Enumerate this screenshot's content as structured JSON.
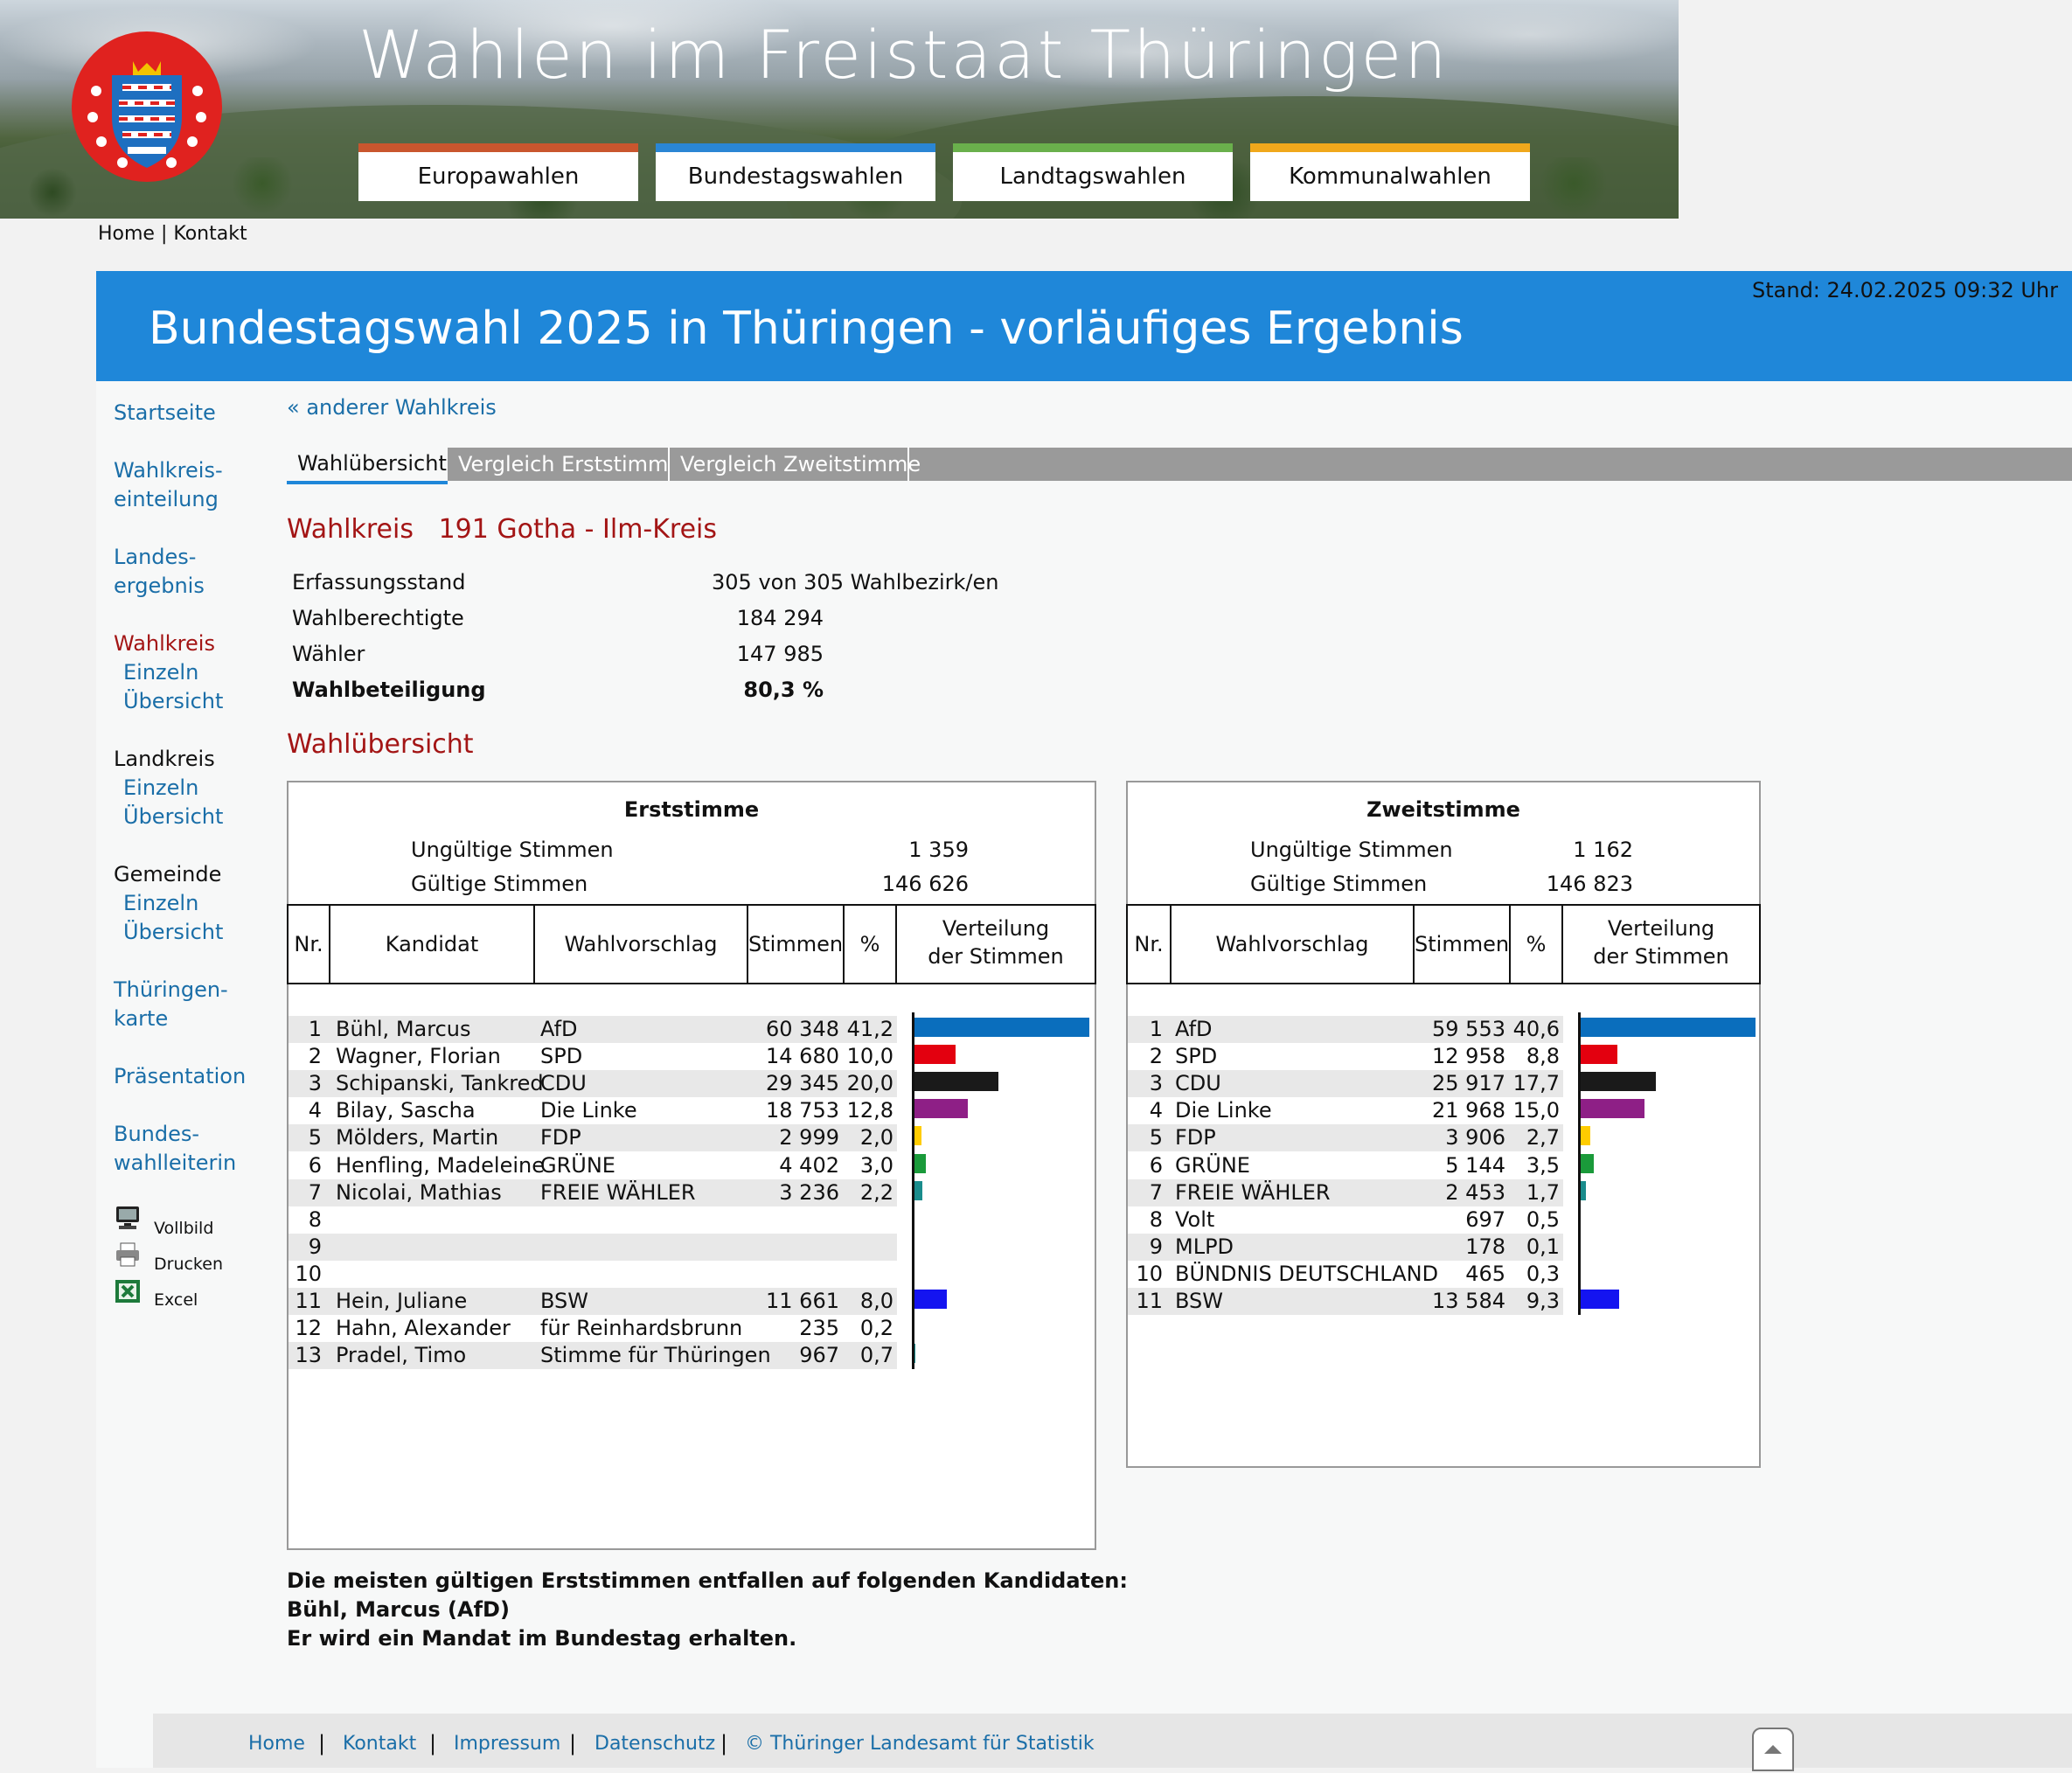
{
  "site": {
    "title": "Wahlen im Freistaat Thüringen",
    "nav_tabs": [
      {
        "label": "Europawahlen",
        "color": "#c9562e"
      },
      {
        "label": "Bundestagswahlen",
        "color": "#2a86d4"
      },
      {
        "label": "Landtagswahlen",
        "color": "#6ab04c"
      },
      {
        "label": "Kommunalwahlen",
        "color": "#f0a81c"
      }
    ],
    "top_links": {
      "home": "Home",
      "sep": "|",
      "contact": "Kontakt"
    }
  },
  "header": {
    "title": "Bundestagswahl 2025 in Thüringen - vorläufiges Ergebnis",
    "stand": "Stand: 24.02.2025  09:32 Uhr"
  },
  "sidebar": {
    "startseite": "Startseite",
    "wahlkreiseinteilung": [
      "Wahlkreis-",
      "einteilung"
    ],
    "landesergebnis": [
      "Landes-",
      "ergebnis"
    ],
    "wahlkreis": {
      "label": "Wahlkreis",
      "einzeln": "Einzeln",
      "uebersicht": "Übersicht"
    },
    "landkreis": {
      "label": "Landkreis",
      "einzeln": "Einzeln",
      "uebersicht": "Übersicht"
    },
    "gemeinde": {
      "label": "Gemeinde",
      "einzeln": "Einzeln",
      "uebersicht": "Übersicht"
    },
    "karte": [
      "Thüringen-",
      "karte"
    ],
    "praesentation": "Präsentation",
    "bundeswahlleiterin": [
      "Bundes-",
      "wahlleiterin"
    ],
    "tools": {
      "vollbild": "Vollbild",
      "drucken": "Drucken",
      "excel": "Excel"
    }
  },
  "main": {
    "back_link": "« anderer Wahlkreis",
    "tabs": [
      "Wahlübersicht",
      "Vergleich Erststimme",
      "Vergleich Zweitstimme"
    ],
    "wahlkreis_label": "Wahlkreis",
    "wahlkreis_name": "191 Gotha - Ilm-Kreis",
    "stats": {
      "erfassungsstand_label": "Erfassungsstand",
      "erfassungsstand_value": "305 von 305  Wahlbezirk/en",
      "berechtigte_label": "Wahlberechtigte",
      "berechtigte_value": "184 294",
      "waehler_label": "Wähler",
      "waehler_value": "147 985",
      "beteiligung_label": "Wahlbeteiligung",
      "beteiligung_value": "80,3  %"
    },
    "overview_title": "Wahlübersicht",
    "erst": {
      "title": "Erststimme",
      "ungueltig_label": "Ungültige Stimmen",
      "ungueltig_value": "1 359",
      "gueltig_label": "Gültige Stimmen",
      "gueltig_value": "146 626",
      "headers": {
        "nr": "Nr.",
        "kandidat": "Kandidat",
        "wahlvorschlag": "Wahlvorschlag",
        "stimmen": "Stimmen",
        "pct": "%",
        "verteilung1": "Verteilung",
        "verteilung2": "der Stimmen"
      },
      "rows": [
        {
          "nr": "1",
          "kandidat": "Bühl, Marcus",
          "partei": "AfD",
          "stimmen": "60 348",
          "pct": "41,2",
          "share": 41.2,
          "color": "#0a6ebd"
        },
        {
          "nr": "2",
          "kandidat": "Wagner, Florian",
          "partei": "SPD",
          "stimmen": "14 680",
          "pct": "10,0",
          "share": 10.0,
          "color": "#e3000f"
        },
        {
          "nr": "3",
          "kandidat": "Schipanski, Tankred",
          "partei": "CDU",
          "stimmen": "29 345",
          "pct": "20,0",
          "share": 20.0,
          "color": "#1a1a1a"
        },
        {
          "nr": "4",
          "kandidat": "Bilay, Sascha",
          "partei": "Die Linke",
          "stimmen": "18 753",
          "pct": "12,8",
          "share": 12.8,
          "color": "#8e1f86"
        },
        {
          "nr": "5",
          "kandidat": "Mölders, Martin",
          "partei": "FDP",
          "stimmen": "2 999",
          "pct": "2,0",
          "share": 2.0,
          "color": "#ffcc00"
        },
        {
          "nr": "6",
          "kandidat": "Henfling, Madeleine",
          "partei": "GRÜNE",
          "stimmen": "4 402",
          "pct": "3,0",
          "share": 3.0,
          "color": "#1a9a3a"
        },
        {
          "nr": "7",
          "kandidat": "Nicolai, Mathias",
          "partei": "FREIE WÄHLER",
          "stimmen": "3 236",
          "pct": "2,2",
          "share": 2.2,
          "color": "#1a8c8c"
        },
        {
          "nr": "8",
          "kandidat": "",
          "partei": "",
          "stimmen": "",
          "pct": "",
          "share": 0,
          "color": "#111111"
        },
        {
          "nr": "9",
          "kandidat": "",
          "partei": "",
          "stimmen": "",
          "pct": "",
          "share": 0,
          "color": "#111111"
        },
        {
          "nr": "10",
          "kandidat": "",
          "partei": "",
          "stimmen": "",
          "pct": "",
          "share": 0,
          "color": "#111111"
        },
        {
          "nr": "11",
          "kandidat": "Hein, Juliane",
          "partei": "BSW",
          "stimmen": "11 661",
          "pct": "8,0",
          "share": 8.0,
          "color": "#1414f0"
        },
        {
          "nr": "12",
          "kandidat": "Hahn, Alexander",
          "partei": "für Reinhardsbrunn",
          "stimmen": "235",
          "pct": "0,2",
          "share": 0.2,
          "color": "#777777"
        },
        {
          "nr": "13",
          "kandidat": "Pradel, Timo",
          "partei": "Stimme für Thüringen",
          "stimmen": "967",
          "pct": "0,7",
          "share": 0.7,
          "color": "#1a8c8c"
        }
      ]
    },
    "zweit": {
      "title": "Zweitstimme",
      "ungueltig_label": "Ungültige Stimmen",
      "ungueltig_value": "1 162",
      "gueltig_label": "Gültige Stimmen",
      "gueltig_value": "146 823",
      "headers": {
        "nr": "Nr.",
        "wahlvorschlag": "Wahlvorschlag",
        "stimmen": "Stimmen",
        "pct": "%",
        "verteilung1": "Verteilung",
        "verteilung2": "der Stimmen"
      },
      "rows": [
        {
          "nr": "1",
          "partei": "AfD",
          "stimmen": "59 553",
          "pct": "40,6",
          "share": 40.6,
          "color": "#0a6ebd"
        },
        {
          "nr": "2",
          "partei": "SPD",
          "stimmen": "12 958",
          "pct": "8,8",
          "share": 8.8,
          "color": "#e3000f"
        },
        {
          "nr": "3",
          "partei": "CDU",
          "stimmen": "25 917",
          "pct": "17,7",
          "share": 17.7,
          "color": "#1a1a1a"
        },
        {
          "nr": "4",
          "partei": "Die Linke",
          "stimmen": "21 968",
          "pct": "15,0",
          "share": 15.0,
          "color": "#8e1f86"
        },
        {
          "nr": "5",
          "partei": "FDP",
          "stimmen": "3 906",
          "pct": "2,7",
          "share": 2.7,
          "color": "#ffcc00"
        },
        {
          "nr": "6",
          "partei": "GRÜNE",
          "stimmen": "5 144",
          "pct": "3,5",
          "share": 3.5,
          "color": "#1a9a3a"
        },
        {
          "nr": "7",
          "partei": "FREIE WÄHLER",
          "stimmen": "2 453",
          "pct": "1,7",
          "share": 1.7,
          "color": "#1a8c8c"
        },
        {
          "nr": "8",
          "partei": "Volt",
          "stimmen": "697",
          "pct": "0,5",
          "share": 0.5,
          "color": "#502379"
        },
        {
          "nr": "9",
          "partei": "MLPD",
          "stimmen": "178",
          "pct": "0,1",
          "share": 0.1,
          "color": "#777777"
        },
        {
          "nr": "10",
          "partei": "BÜNDNIS DEUTSCHLAND",
          "stimmen": "465",
          "pct": "0,3",
          "share": 0.3,
          "color": "#777777"
        },
        {
          "nr": "11",
          "partei": "BSW",
          "stimmen": "13 584",
          "pct": "9,3",
          "share": 9.3,
          "color": "#1414f0"
        }
      ]
    },
    "result_lines": [
      "Die meisten gültigen Erststimmen entfallen auf folgenden Kandidaten:",
      "Bühl, Marcus (AfD)",
      "Er wird ein Mandat im Bundestag erhalten."
    ]
  },
  "footer": {
    "home": "Home",
    "kontakt": "Kontakt",
    "impressum": "Impressum",
    "datenschutz": "Datenschutz",
    "copyright": "© Thüringer Landesamt für Statistik",
    "sep": "|"
  }
}
